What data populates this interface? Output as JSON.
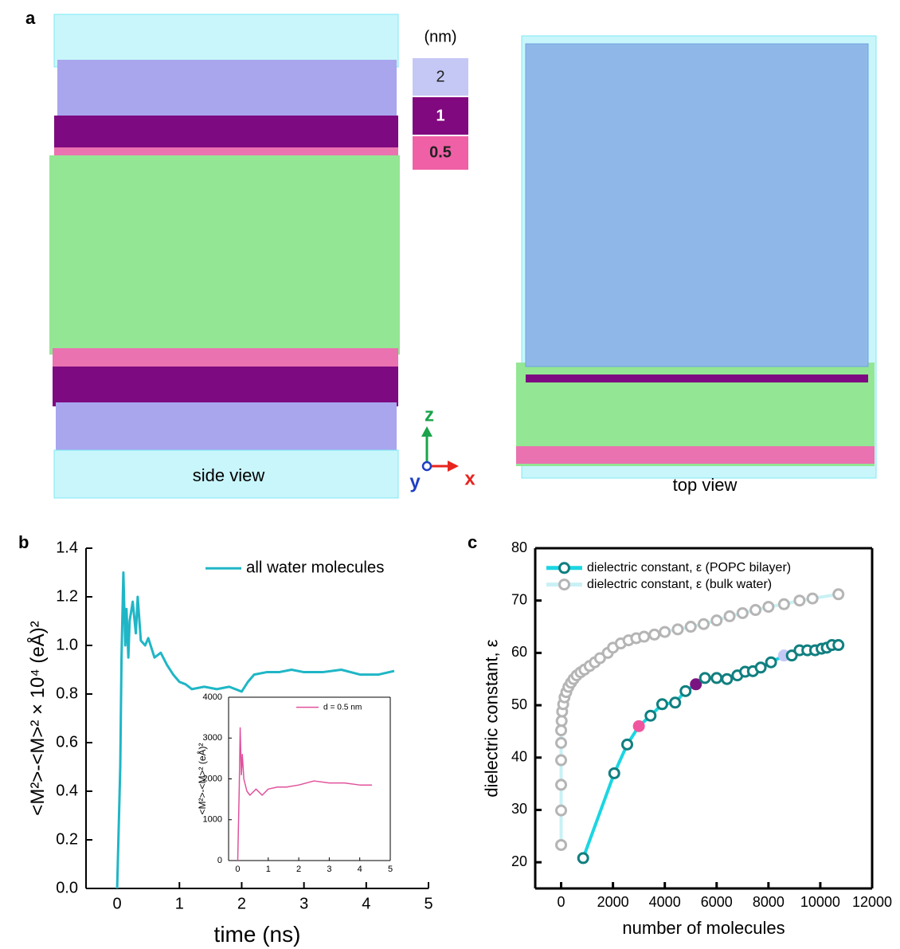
{
  "panel_a": {
    "label": "a",
    "unit": "(nm)",
    "layers": [
      "2",
      "1",
      "0.5"
    ],
    "axes": {
      "z": "z",
      "y": "y",
      "x": "x"
    },
    "side_view": "side view",
    "top_view": "top view"
  },
  "chart_data": [
    {
      "type": "line",
      "label": "b",
      "xlabel": "time (ns)",
      "ylabel": "<M²>-<M>² × 10⁴ (eÅ)²",
      "xlim": [
        -0.5,
        5
      ],
      "xticks": [
        0,
        1,
        2,
        3,
        4,
        5
      ],
      "ylim": [
        0,
        1.4
      ],
      "yticks": [
        {
          "value": 0,
          "label": "0.0"
        },
        0.2,
        0.4,
        0.6,
        0.8,
        {
          "value": 1,
          "label": "1.0"
        },
        1.2,
        1.4
      ],
      "legend": "upper right",
      "frame": false,
      "series": [
        {
          "name": "all water molecules",
          "color": "#1fb6c6",
          "x": [
            0,
            0.02,
            0.05,
            0.07,
            0.1,
            0.13,
            0.15,
            0.18,
            0.2,
            0.25,
            0.3,
            0.33,
            0.38,
            0.45,
            0.5,
            0.6,
            0.7,
            0.8,
            0.9,
            1.0,
            1.1,
            1.2,
            1.4,
            1.6,
            1.8,
            2.0,
            2.1,
            2.2,
            2.4,
            2.6,
            2.8,
            3.0,
            3.3,
            3.6,
            3.9,
            4.2,
            4.45
          ],
          "values": [
            0,
            0.2,
            0.5,
            0.95,
            1.3,
            1.0,
            1.15,
            0.95,
            1.1,
            1.18,
            1.05,
            1.2,
            1.02,
            1.0,
            1.03,
            0.95,
            0.97,
            0.92,
            0.88,
            0.85,
            0.84,
            0.82,
            0.83,
            0.82,
            0.83,
            0.81,
            0.85,
            0.88,
            0.89,
            0.89,
            0.9,
            0.89,
            0.89,
            0.9,
            0.88,
            0.88,
            0.895
          ]
        }
      ]
    },
    {
      "type": "line",
      "ylabel": "<M²>-<M>² (eÅ)²",
      "xlim": [
        -0.3,
        5
      ],
      "xticks": [
        0,
        1,
        2,
        3,
        4,
        5
      ],
      "ylim": [
        0,
        4000
      ],
      "yticks": [
        0,
        1000,
        2000,
        3000,
        4000
      ],
      "legend": "upper right",
      "frame": true,
      "series": [
        {
          "name": "d = 0.5 nm",
          "color": "#e0529c",
          "x": [
            0,
            0.05,
            0.08,
            0.12,
            0.15,
            0.2,
            0.3,
            0.4,
            0.6,
            0.8,
            1.0,
            1.3,
            1.6,
            2.0,
            2.5,
            3.0,
            3.5,
            4.0,
            4.4
          ],
          "values": [
            0,
            1800,
            3250,
            2100,
            2600,
            2000,
            1700,
            1600,
            1750,
            1600,
            1750,
            1800,
            1800,
            1850,
            1950,
            1900,
            1900,
            1850,
            1850
          ]
        }
      ]
    },
    {
      "type": "line",
      "label": "c",
      "xlabel": "number of molecules",
      "ylabel": "dielectric constant, ε",
      "xlim": [
        -1000,
        12000
      ],
      "xticks": [
        0,
        2000,
        4000,
        6000,
        8000,
        10000,
        12000
      ],
      "ylim": [
        15,
        80
      ],
      "yticks": [
        20,
        30,
        40,
        50,
        60,
        70,
        80
      ],
      "legend": "upper left",
      "frame": true,
      "markers": true,
      "series": [
        {
          "name": "dielectric constant, ε (POPC bilayer)",
          "color": "#1ad6e2",
          "marker_color": "#117f80",
          "x": [
            850,
            2050,
            2550,
            3000,
            3450,
            3900,
            4400,
            4800,
            5200,
            5550,
            6000,
            6400,
            6800,
            7100,
            7400,
            7700,
            8100,
            8600,
            8900,
            9200,
            9500,
            9800,
            10050,
            10250,
            10450,
            10700
          ],
          "values": [
            20.8,
            37,
            42.5,
            46,
            48,
            50.2,
            50.5,
            52.7,
            54,
            55.2,
            55.2,
            55,
            55.7,
            56.4,
            56.5,
            57.2,
            58.2,
            59.5,
            59.5,
            60.5,
            60.5,
            60.5,
            60.8,
            61,
            61.5,
            61.5
          ],
          "point_colors": [
            null,
            null,
            null,
            "#f0559f",
            null,
            null,
            null,
            null,
            "#7a1480",
            null,
            null,
            null,
            null,
            null,
            null,
            null,
            null,
            "#c5c8f5",
            null,
            null,
            null,
            null,
            null,
            null,
            null,
            null
          ]
        },
        {
          "name": "dielectric constant, ε (bulk water)",
          "color": "#c9f1f5",
          "marker_color": "#b5b5b5",
          "x": [
            0,
            0,
            0,
            0,
            0,
            0,
            20,
            40,
            80,
            130,
            200,
            280,
            380,
            480,
            600,
            750,
            900,
            1100,
            1300,
            1500,
            1800,
            2000,
            2300,
            2600,
            2900,
            3200,
            3600,
            4000,
            4500,
            5000,
            5500,
            6000,
            6500,
            7000,
            7500,
            8000,
            8600,
            9200,
            9700,
            10700
          ],
          "values": [
            23.3,
            29.9,
            34.8,
            39.5,
            42.8,
            45.2,
            47,
            48.8,
            50.2,
            51.5,
            52.5,
            53.5,
            54.3,
            55,
            55.7,
            56.3,
            56.8,
            57.5,
            58.2,
            59,
            60,
            61,
            61.8,
            62.4,
            62.8,
            63.1,
            63.5,
            64,
            64.5,
            65,
            65.5,
            66.2,
            67,
            67.6,
            68.2,
            68.8,
            69.3,
            70,
            70.4,
            71.2
          ]
        }
      ]
    }
  ]
}
